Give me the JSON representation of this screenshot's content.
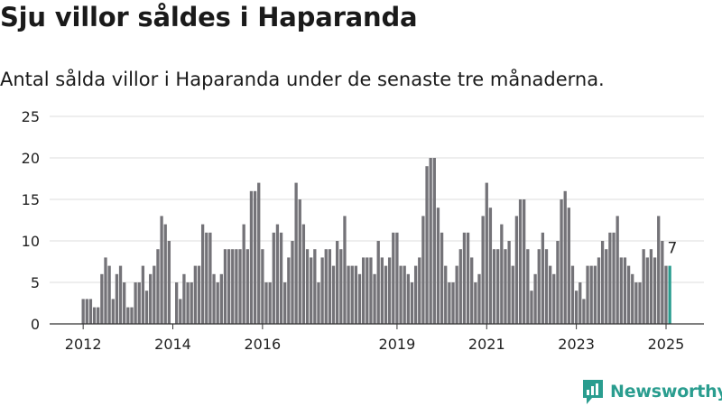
{
  "title": "Sju villor såldes i Haparanda",
  "subtitle": "Antal sålda villor i Haparanda under de senaste tre månaderna.",
  "brand": {
    "name": "Newsworthy",
    "icon": "newsworthy-logo-icon",
    "color": "#2a9d8f"
  },
  "colors": {
    "bar": "#747378",
    "highlight": "#2a9d8f",
    "grid": "#dddddd",
    "axis": "#333333"
  },
  "chart_data": {
    "type": "bar",
    "ylim": [
      0,
      25
    ],
    "yticks": [
      0,
      5,
      10,
      15,
      20,
      25
    ],
    "xticks": [
      "2012",
      "2014",
      "2016",
      "2019",
      "2021",
      "2023",
      "2025"
    ],
    "start_month": "2012-01",
    "values": [
      3,
      3,
      3,
      2,
      2,
      6,
      8,
      7,
      3,
      6,
      7,
      5,
      2,
      2,
      5,
      5,
      7,
      4,
      6,
      7,
      9,
      13,
      12,
      10,
      0,
      5,
      3,
      6,
      5,
      5,
      7,
      7,
      12,
      11,
      11,
      6,
      5,
      6,
      9,
      9,
      9,
      9,
      9,
      12,
      9,
      16,
      16,
      17,
      9,
      5,
      5,
      11,
      12,
      11,
      5,
      8,
      10,
      17,
      15,
      12,
      9,
      8,
      9,
      5,
      8,
      9,
      9,
      7,
      10,
      9,
      13,
      7,
      7,
      7,
      6,
      8,
      8,
      8,
      6,
      10,
      8,
      7,
      8,
      11,
      11,
      7,
      7,
      6,
      5,
      7,
      8,
      13,
      19,
      20,
      20,
      14,
      11,
      7,
      5,
      5,
      7,
      9,
      11,
      11,
      8,
      5,
      6,
      13,
      17,
      14,
      9,
      9,
      12,
      9,
      10,
      7,
      13,
      15,
      15,
      9,
      4,
      6,
      9,
      11,
      9,
      7,
      6,
      10,
      15,
      16,
      14,
      7,
      4,
      5,
      3,
      7,
      7,
      7,
      8,
      10,
      9,
      11,
      11,
      13,
      8,
      8,
      7,
      6,
      5,
      5,
      9,
      8,
      9,
      8,
      13,
      10,
      7,
      7
    ],
    "highlight_label": "7"
  }
}
